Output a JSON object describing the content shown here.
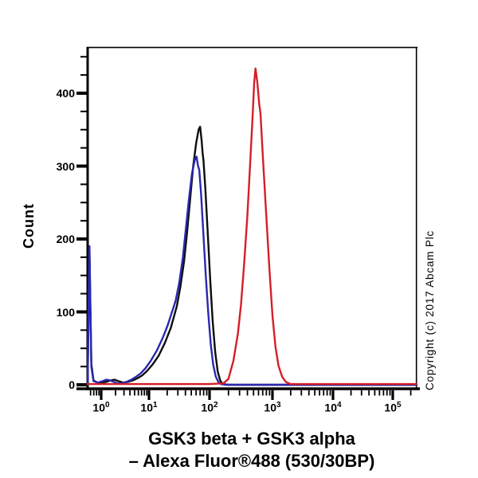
{
  "figure": {
    "background_color": "#ffffff",
    "plot": {
      "border_color": "#000000",
      "y_axis": {
        "label": "Count",
        "major_ticks": [
          0,
          100,
          200,
          300,
          400
        ],
        "minor_tick_step": 25,
        "max": 460
      },
      "x_axis": {
        "scale": "log10",
        "decade_exponents": [
          0,
          1,
          2,
          3,
          4,
          5
        ],
        "tick_label_base": "10"
      }
    },
    "caption": {
      "line1": "GSK3 beta + GSK3 alpha",
      "line2": "– Alexa Fluor®488 (530/30BP)"
    },
    "copyright": "Copyright (c) 2017 Abcam Plc"
  },
  "chart_data": {
    "type": "line",
    "subtype": "flow_cytometry_histogram",
    "title": "GSK3 beta + GSK3 alpha – Alexa Fluor®488 (530/30BP)",
    "xlabel": "GSK3 beta + GSK3 alpha – Alexa Fluor®488 (530/30BP)",
    "ylabel": "Count",
    "x_scale": "log",
    "xlim_log10": [
      -0.283,
      5.4
    ],
    "ylim": [
      0,
      460
    ],
    "grid": false,
    "legend": "none",
    "x_tick_labels": [
      "10^0",
      "10^1",
      "10^2",
      "10^3",
      "10^4",
      "10^5"
    ],
    "y_tick_labels": [
      "0",
      "100",
      "200",
      "300",
      "400"
    ],
    "series": [
      {
        "name": "black-curve",
        "color": "#0d0d0d",
        "peak": {
          "x": 70,
          "count": 354
        },
        "log10_x": [
          -0.283,
          -0.262,
          -0.245,
          -0.228,
          -0.205,
          -0.16,
          -0.08,
          0.02,
          0.1,
          0.2,
          0.28,
          0.36,
          0.46,
          0.56,
          0.66,
          0.76,
          0.86,
          0.96,
          1.06,
          1.16,
          1.26,
          1.36,
          1.46,
          1.52,
          1.58,
          1.63,
          1.68,
          1.73,
          1.78,
          1.82,
          1.845,
          1.87,
          1.885,
          1.9,
          1.93,
          1.97,
          2.01,
          2.05,
          2.09,
          2.13,
          2.17,
          2.21,
          2.3,
          5.4
        ],
        "counts": [
          0,
          110,
          183,
          115,
          28,
          6,
          3,
          3,
          4,
          6,
          7,
          5,
          3,
          4,
          6,
          9,
          13,
          19,
          28,
          40,
          57,
          78,
          108,
          135,
          170,
          210,
          255,
          300,
          332,
          350,
          354,
          335,
          318,
          308,
          270,
          210,
          145,
          88,
          45,
          18,
          6,
          1,
          0,
          0
        ]
      },
      {
        "name": "blue-curve",
        "color": "#2a28b0",
        "peak": {
          "x": 61,
          "count": 313
        },
        "log10_x": [
          -0.283,
          -0.262,
          -0.245,
          -0.228,
          -0.205,
          -0.16,
          -0.07,
          0.03,
          0.11,
          0.19,
          0.26,
          0.34,
          0.43,
          0.53,
          0.63,
          0.73,
          0.83,
          0.93,
          1.03,
          1.13,
          1.23,
          1.31,
          1.38,
          1.44,
          1.5,
          1.56,
          1.61,
          1.66,
          1.71,
          1.755,
          1.785,
          1.81,
          1.83,
          1.86,
          1.9,
          1.94,
          1.98,
          2.02,
          2.06,
          2.1,
          2.14,
          2.18,
          2.26,
          5.4
        ],
        "counts": [
          0,
          125,
          190,
          120,
          24,
          5,
          3,
          5,
          7,
          6,
          4,
          2,
          2,
          4,
          7,
          11,
          16,
          23,
          33,
          47,
          65,
          82,
          100,
          115,
          140,
          175,
          215,
          255,
          290,
          308,
          313,
          300,
          295,
          262,
          205,
          148,
          97,
          55,
          27,
          11,
          4,
          1,
          0,
          0
        ]
      },
      {
        "name": "red-curve",
        "color": "#d51f26",
        "peak": {
          "x": 531,
          "count": 434
        },
        "log10_x": [
          -0.283,
          0.5,
          1.0,
          1.5,
          2.0,
          2.22,
          2.3,
          2.38,
          2.45,
          2.5,
          2.55,
          2.6,
          2.64,
          2.68,
          2.71,
          2.73,
          2.76,
          2.79,
          2.81,
          2.85,
          2.9,
          2.95,
          3.0,
          3.05,
          3.1,
          3.16,
          3.22,
          3.3,
          3.6,
          4.0,
          4.5,
          5.0,
          5.4
        ],
        "counts": [
          1,
          1,
          1,
          1,
          1,
          2,
          8,
          33,
          70,
          110,
          165,
          230,
          295,
          360,
          415,
          434,
          415,
          385,
          372,
          310,
          235,
          160,
          95,
          52,
          26,
          11,
          4,
          1,
          1,
          1,
          1,
          1,
          1
        ]
      }
    ]
  }
}
